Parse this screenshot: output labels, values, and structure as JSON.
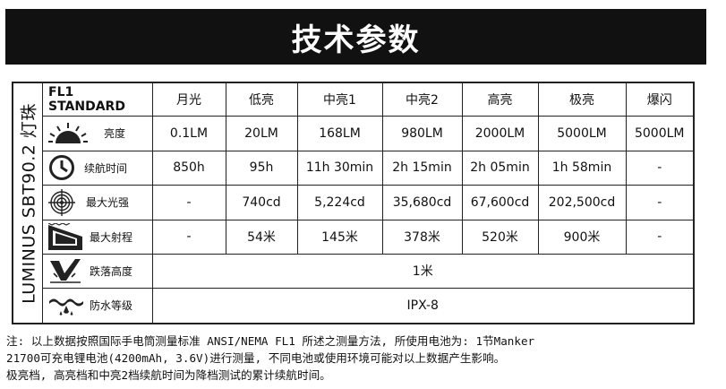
{
  "title": "技术参数",
  "brand": "LUMINUS SBT90.2 灯珠",
  "standard": "FL1 STANDARD",
  "modes": [
    "月光",
    "低亮",
    "中亮1",
    "中亮2",
    "高亮",
    "极亮",
    "爆闪"
  ],
  "rows": [
    {
      "label": "亮度",
      "icon": "brightness-icon",
      "values": [
        "0.1LM",
        "20LM",
        "168LM",
        "980LM",
        "2000LM",
        "5000LM",
        "5000LM"
      ]
    },
    {
      "label": "续航时间",
      "icon": "clock-icon",
      "values": [
        "850h",
        "95h",
        "11h 30min",
        "2h 15min",
        "2h 05min",
        "1h 58min",
        "-"
      ]
    },
    {
      "label": "最大光强",
      "icon": "target-icon",
      "values": [
        "-",
        "740cd",
        "5,224cd",
        "35,680cd",
        "67,600cd",
        "202,500cd",
        "-"
      ]
    },
    {
      "label": "最大射程",
      "icon": "beam-distance-icon",
      "values": [
        "-",
        "54米",
        "145米",
        "378米",
        "520米",
        "900米",
        "-"
      ]
    }
  ],
  "impact": {
    "label": "跌落高度",
    "icon": "impact-icon",
    "value": "1米"
  },
  "waterproof": {
    "label": "防水等级",
    "icon": "water-icon",
    "value": "IPX-8"
  },
  "notes": [
    "注: 以上数据按照国际手电筒测量标准 ANSI/NEMA FL1 所述之测量方法, 所使用电池为: 1节Manker",
    "21700可充电锂电池(4200mAh, 3.6V)进行测量, 不同电池或使用环境可能对以上数据产生影响。",
    "极亮档, 高亮档和中亮2档续航时间为降档测试的累计续航时间。"
  ]
}
